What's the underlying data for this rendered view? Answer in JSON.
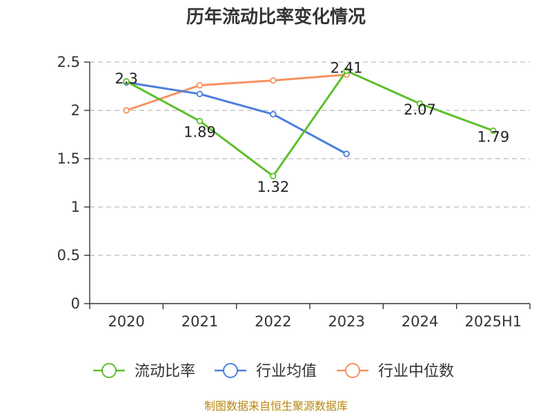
{
  "chart_data": {
    "type": "line",
    "title": "历年流动比率变化情况",
    "categories": [
      "2020",
      "2021",
      "2022",
      "2023",
      "2024",
      "2025H1"
    ],
    "y_ticks": [
      "0",
      "0.5",
      "1",
      "1.5",
      "2",
      "2.5"
    ],
    "ylim": [
      0,
      2.5
    ],
    "grid": true,
    "legend_position": "bottom",
    "series": [
      {
        "name": "流动比率",
        "color": "#5cbf2a",
        "values": [
          2.3,
          1.89,
          1.32,
          2.41,
          2.07,
          1.79
        ],
        "labels": [
          "2.3",
          "1.89",
          "1.32",
          "2.41",
          "2.07",
          "1.79"
        ]
      },
      {
        "name": "行业均值",
        "color": "#4a7fdc",
        "values": [
          2.29,
          2.17,
          1.96,
          1.55,
          null,
          null
        ]
      },
      {
        "name": "行业中位数",
        "color": "#f59260",
        "values": [
          2.0,
          2.26,
          2.31,
          2.37,
          null,
          null
        ]
      }
    ]
  },
  "source": "制图数据来自恒生聚源数据库"
}
